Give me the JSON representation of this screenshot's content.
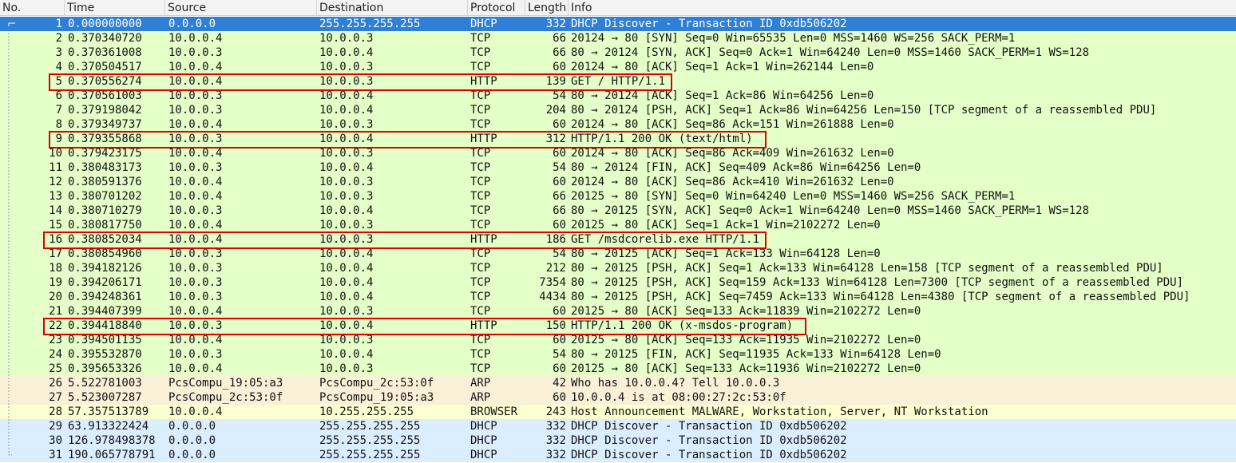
{
  "columns": {
    "no": "No.",
    "time": "Time",
    "source": "Source",
    "destination": "Destination",
    "protocol": "Protocol",
    "length": "Length",
    "info": "Info"
  },
  "packets": [
    {
      "no": "1",
      "time": "0.000000000",
      "src": "0.0.0.0",
      "dst": "255.255.255.255",
      "proto": "DHCP",
      "len": "332",
      "info": "DHCP Discover - Transaction ID 0xdb506202",
      "color": "sel"
    },
    {
      "no": "2",
      "time": "0.370340720",
      "src": "10.0.0.4",
      "dst": "10.0.0.3",
      "proto": "TCP",
      "len": "66",
      "info": "20124 → 80 [SYN] Seq=0 Win=65535 Len=0 MSS=1460 WS=256 SACK_PERM=1",
      "color": "green"
    },
    {
      "no": "3",
      "time": "0.370361008",
      "src": "10.0.0.3",
      "dst": "10.0.0.4",
      "proto": "TCP",
      "len": "66",
      "info": "80 → 20124 [SYN, ACK] Seq=0 Ack=1 Win=64240 Len=0 MSS=1460 SACK_PERM=1 WS=128",
      "color": "green"
    },
    {
      "no": "4",
      "time": "0.370504517",
      "src": "10.0.0.4",
      "dst": "10.0.0.3",
      "proto": "TCP",
      "len": "60",
      "info": "20124 → 80 [ACK] Seq=1 Ack=1 Win=262144 Len=0",
      "color": "green"
    },
    {
      "no": "5",
      "time": "0.370556274",
      "src": "10.0.0.4",
      "dst": "10.0.0.3",
      "proto": "HTTP",
      "len": "139",
      "info": "GET / HTTP/1.1",
      "color": "green",
      "boxed": true
    },
    {
      "no": "6",
      "time": "0.370561003",
      "src": "10.0.0.3",
      "dst": "10.0.0.4",
      "proto": "TCP",
      "len": "54",
      "info": "80 → 20124 [ACK] Seq=1 Ack=86 Win=64256 Len=0",
      "color": "green"
    },
    {
      "no": "7",
      "time": "0.379198042",
      "src": "10.0.0.3",
      "dst": "10.0.0.4",
      "proto": "TCP",
      "len": "204",
      "info": "80 → 20124 [PSH, ACK] Seq=1 Ack=86 Win=64256 Len=150 [TCP segment of a reassembled PDU]",
      "color": "green"
    },
    {
      "no": "8",
      "time": "0.379349737",
      "src": "10.0.0.4",
      "dst": "10.0.0.3",
      "proto": "TCP",
      "len": "60",
      "info": "20124 → 80 [ACK] Seq=86 Ack=151 Win=261888 Len=0",
      "color": "green"
    },
    {
      "no": "9",
      "time": "0.379355868",
      "src": "10.0.0.3",
      "dst": "10.0.0.4",
      "proto": "HTTP",
      "len": "312",
      "info": "HTTP/1.1 200 OK  (text/html)",
      "color": "green",
      "boxed": true
    },
    {
      "no": "10",
      "time": "0.379423175",
      "src": "10.0.0.4",
      "dst": "10.0.0.3",
      "proto": "TCP",
      "len": "60",
      "info": "20124 → 80 [ACK] Seq=86 Ack=409 Win=261632 Len=0",
      "color": "green"
    },
    {
      "no": "11",
      "time": "0.380483173",
      "src": "10.0.0.3",
      "dst": "10.0.0.4",
      "proto": "TCP",
      "len": "54",
      "info": "80 → 20124 [FIN, ACK] Seq=409 Ack=86 Win=64256 Len=0",
      "color": "green"
    },
    {
      "no": "12",
      "time": "0.380591376",
      "src": "10.0.0.4",
      "dst": "10.0.0.3",
      "proto": "TCP",
      "len": "60",
      "info": "20124 → 80 [ACK] Seq=86 Ack=410 Win=261632 Len=0",
      "color": "green"
    },
    {
      "no": "13",
      "time": "0.380701202",
      "src": "10.0.0.4",
      "dst": "10.0.0.3",
      "proto": "TCP",
      "len": "66",
      "info": "20125 → 80 [SYN] Seq=0 Win=64240 Len=0 MSS=1460 WS=256 SACK_PERM=1",
      "color": "green"
    },
    {
      "no": "14",
      "time": "0.380710279",
      "src": "10.0.0.3",
      "dst": "10.0.0.4",
      "proto": "TCP",
      "len": "66",
      "info": "80 → 20125 [SYN, ACK] Seq=0 Ack=1 Win=64240 Len=0 MSS=1460 SACK_PERM=1 WS=128",
      "color": "green"
    },
    {
      "no": "15",
      "time": "0.380817750",
      "src": "10.0.0.4",
      "dst": "10.0.0.3",
      "proto": "TCP",
      "len": "60",
      "info": "20125 → 80 [ACK] Seq=1 Ack=1 Win=2102272 Len=0",
      "color": "green"
    },
    {
      "no": "16",
      "time": "0.380852034",
      "src": "10.0.0.4",
      "dst": "10.0.0.3",
      "proto": "HTTP",
      "len": "186",
      "info": "GET /msdcorelib.exe HTTP/1.1",
      "color": "green",
      "boxed": true
    },
    {
      "no": "17",
      "time": "0.380854960",
      "src": "10.0.0.3",
      "dst": "10.0.0.4",
      "proto": "TCP",
      "len": "54",
      "info": "80 → 20125 [ACK] Seq=1 Ack=133 Win=64128 Len=0",
      "color": "green"
    },
    {
      "no": "18",
      "time": "0.394182126",
      "src": "10.0.0.3",
      "dst": "10.0.0.4",
      "proto": "TCP",
      "len": "212",
      "info": "80 → 20125 [PSH, ACK] Seq=1 Ack=133 Win=64128 Len=158 [TCP segment of a reassembled PDU]",
      "color": "green"
    },
    {
      "no": "19",
      "time": "0.394206171",
      "src": "10.0.0.3",
      "dst": "10.0.0.4",
      "proto": "TCP",
      "len": "7354",
      "info": "80 → 20125 [PSH, ACK] Seq=159 Ack=133 Win=64128 Len=7300 [TCP segment of a reassembled PDU]",
      "color": "green"
    },
    {
      "no": "20",
      "time": "0.394248361",
      "src": "10.0.0.3",
      "dst": "10.0.0.4",
      "proto": "TCP",
      "len": "4434",
      "info": "80 → 20125 [PSH, ACK] Seq=7459 Ack=133 Win=64128 Len=4380 [TCP segment of a reassembled PDU]",
      "color": "green"
    },
    {
      "no": "21",
      "time": "0.394407399",
      "src": "10.0.0.4",
      "dst": "10.0.0.3",
      "proto": "TCP",
      "len": "60",
      "info": "20125 → 80 [ACK] Seq=133 Ack=11839 Win=2102272 Len=0",
      "color": "green"
    },
    {
      "no": "22",
      "time": "0.394418840",
      "src": "10.0.0.3",
      "dst": "10.0.0.4",
      "proto": "HTTP",
      "len": "150",
      "info": "HTTP/1.1 200 OK  (x-msdos-program)",
      "color": "green",
      "boxed": true
    },
    {
      "no": "23",
      "time": "0.394501135",
      "src": "10.0.0.4",
      "dst": "10.0.0.3",
      "proto": "TCP",
      "len": "60",
      "info": "20125 → 80 [ACK] Seq=133 Ack=11935 Win=2102272 Len=0",
      "color": "green"
    },
    {
      "no": "24",
      "time": "0.395532870",
      "src": "10.0.0.3",
      "dst": "10.0.0.4",
      "proto": "TCP",
      "len": "54",
      "info": "80 → 20125 [FIN, ACK] Seq=11935 Ack=133 Win=64128 Len=0",
      "color": "green"
    },
    {
      "no": "25",
      "time": "0.395653326",
      "src": "10.0.0.4",
      "dst": "10.0.0.3",
      "proto": "TCP",
      "len": "60",
      "info": "20125 → 80 [ACK] Seq=133 Ack=11936 Win=2102272 Len=0",
      "color": "green"
    },
    {
      "no": "26",
      "time": "5.522781003",
      "src": "PcsCompu_19:05:a3",
      "dst": "PcsCompu_2c:53:0f",
      "proto": "ARP",
      "len": "42",
      "info": "Who has 10.0.0.4? Tell 10.0.0.3",
      "color": "tan"
    },
    {
      "no": "27",
      "time": "5.523007287",
      "src": "PcsCompu_2c:53:0f",
      "dst": "PcsCompu_19:05:a3",
      "proto": "ARP",
      "len": "60",
      "info": "10.0.0.4 is at 08:00:27:2c:53:0f",
      "color": "tan"
    },
    {
      "no": "28",
      "time": "57.357513789",
      "src": "10.0.0.4",
      "dst": "10.255.255.255",
      "proto": "BROWSER",
      "len": "243",
      "info": "Host Announcement MALWARE, Workstation, Server, NT Workstation",
      "color": "yellow"
    },
    {
      "no": "29",
      "time": "63.913322424",
      "src": "0.0.0.0",
      "dst": "255.255.255.255",
      "proto": "DHCP",
      "len": "332",
      "info": "DHCP Discover - Transaction ID 0xdb506202",
      "color": "dhcp"
    },
    {
      "no": "30",
      "time": "126.978498378",
      "src": "0.0.0.0",
      "dst": "255.255.255.255",
      "proto": "DHCP",
      "len": "332",
      "info": "DHCP Discover - Transaction ID 0xdb506202",
      "color": "dhcp"
    },
    {
      "no": "31",
      "time": "190.065778791",
      "src": "0.0.0.0",
      "dst": "255.255.255.255",
      "proto": "DHCP",
      "len": "332",
      "info": "DHCP Discover - Transaction ID 0xdb506202",
      "color": "dhcp"
    }
  ],
  "colors": {
    "selected": "#2f7fd6",
    "tcp_http": "#e4ffc7",
    "arp": "#faf0d7",
    "browser": "#feffd0",
    "dhcp": "#daeeff",
    "highlight_box": "#e00000"
  }
}
